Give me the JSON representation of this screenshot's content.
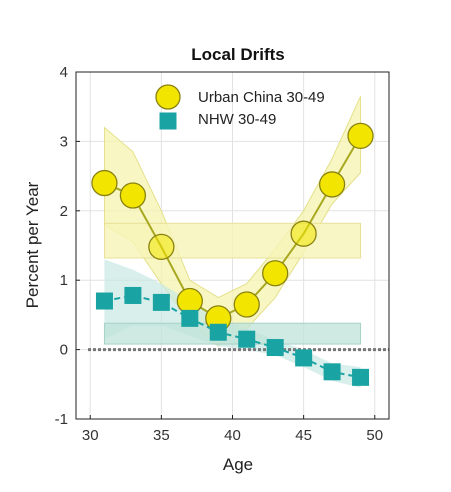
{
  "chart_data": {
    "type": "line",
    "title": "Local Drifts",
    "xlabel": "Age",
    "ylabel": "Percent per Year",
    "xlim": [
      29,
      51
    ],
    "ylim": [
      -1,
      4
    ],
    "xticks": [
      30,
      35,
      40,
      45,
      50
    ],
    "yticks": [
      -1,
      0,
      1,
      2,
      3,
      4
    ],
    "grid": true,
    "legend_position": "top",
    "reference_line": 0,
    "series": [
      {
        "name": "Urban China 30-49",
        "marker": "circle",
        "color": "#f2e600",
        "line_color": "#a8a820",
        "band_color": "#f6f4b0",
        "x": [
          31,
          33,
          35,
          37,
          39,
          41,
          43,
          45,
          47,
          49
        ],
        "y": [
          2.4,
          2.22,
          1.48,
          0.7,
          0.45,
          0.65,
          1.1,
          1.67,
          2.38,
          3.08
        ],
        "lower": [
          1.8,
          1.55,
          0.95,
          0.4,
          0.05,
          0.3,
          0.75,
          1.4,
          2.1,
          2.55
        ],
        "upper": [
          3.2,
          2.85,
          2.0,
          1.0,
          0.75,
          0.95,
          1.45,
          2.0,
          2.75,
          3.65
        ],
        "net_drift_band": [
          1.32,
          1.82
        ]
      },
      {
        "name": "NHW 30-49",
        "marker": "square",
        "color": "#1aa3a3",
        "line_color": "#1aa3a3",
        "band_color": "#c8e8e4",
        "x": [
          31,
          33,
          35,
          37,
          39,
          41,
          43,
          45,
          47,
          49
        ],
        "y": [
          0.7,
          0.78,
          0.68,
          0.45,
          0.25,
          0.15,
          0.03,
          -0.12,
          -0.32,
          -0.4
        ],
        "lower": [
          0.15,
          0.35,
          0.35,
          0.2,
          0.05,
          0.0,
          -0.08,
          -0.25,
          -0.45,
          -0.55
        ],
        "upper": [
          1.3,
          1.15,
          0.95,
          0.7,
          0.45,
          0.3,
          0.14,
          0.0,
          -0.2,
          -0.25
        ],
        "net_drift_band": [
          0.08,
          0.38
        ]
      }
    ]
  }
}
